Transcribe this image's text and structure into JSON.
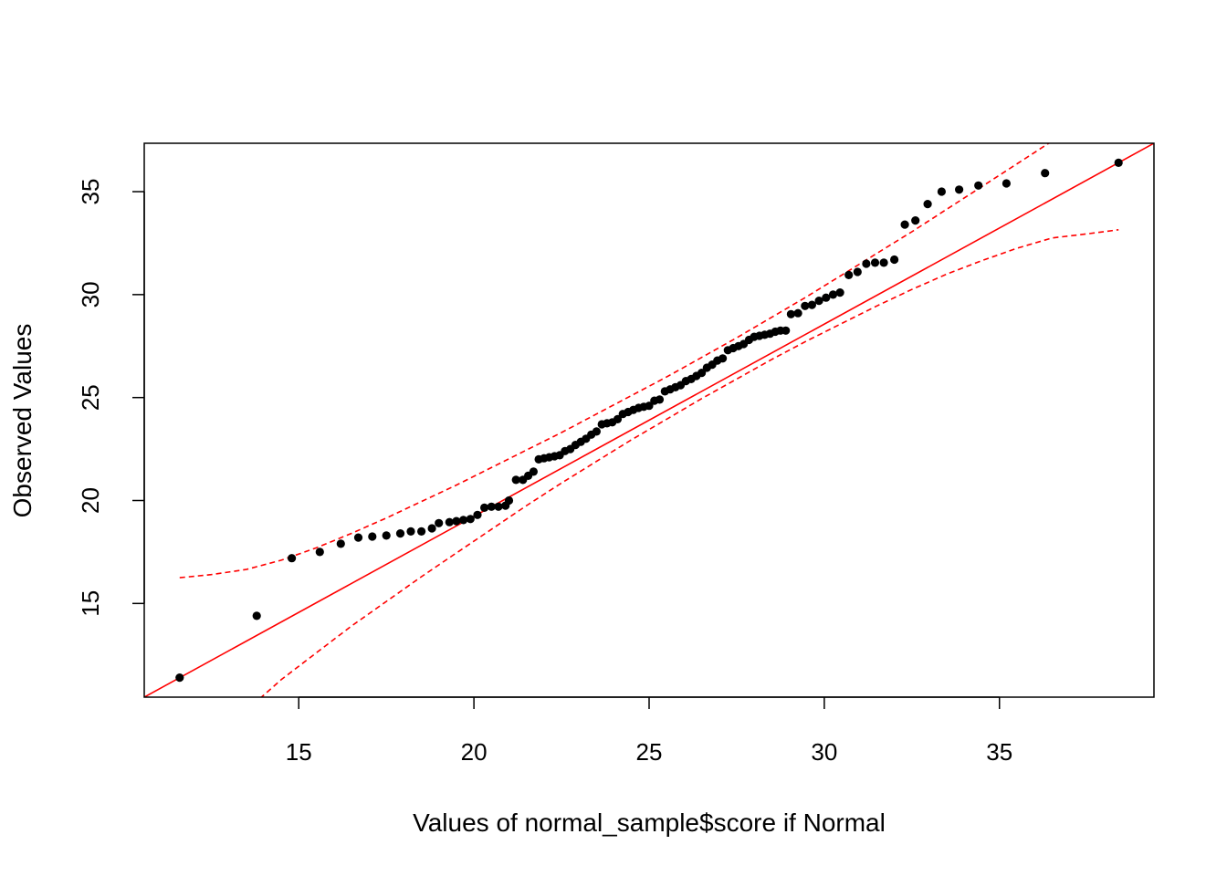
{
  "chart_data": {
    "type": "scatter",
    "title": "",
    "xlabel": "Values of normal_sample$score if Normal",
    "ylabel": "Observed Values",
    "xlim": [
      10.59,
      39.41
    ],
    "ylim": [
      10.45,
      37.35
    ],
    "x_ticks": [
      15,
      20,
      25,
      30,
      35
    ],
    "y_ticks": [
      15,
      20,
      25,
      30,
      35
    ],
    "x_tick_labels": [
      "15",
      "20",
      "25",
      "30",
      "35"
    ],
    "y_tick_labels": [
      "15",
      "20",
      "25",
      "30",
      "35"
    ],
    "grid": false,
    "legend": "none",
    "colors": {
      "points": "#000000",
      "reference_line": "#ff0000",
      "confidence_band": "#ff0000",
      "axes": "#000000"
    },
    "series": [
      {
        "kind": "points",
        "points": [
          [
            11.6,
            11.4
          ],
          [
            13.8,
            14.4
          ],
          [
            14.8,
            17.2
          ],
          [
            15.6,
            17.5
          ],
          [
            16.2,
            17.9
          ],
          [
            16.7,
            18.2
          ],
          [
            17.1,
            18.25
          ],
          [
            17.5,
            18.3
          ],
          [
            17.9,
            18.4
          ],
          [
            18.2,
            18.5
          ],
          [
            18.5,
            18.5
          ],
          [
            18.8,
            18.65
          ],
          [
            19.0,
            18.9
          ],
          [
            19.3,
            18.95
          ],
          [
            19.5,
            19.0
          ],
          [
            19.7,
            19.05
          ],
          [
            19.9,
            19.1
          ],
          [
            20.1,
            19.3
          ],
          [
            20.3,
            19.65
          ],
          [
            20.5,
            19.7
          ],
          [
            20.7,
            19.7
          ],
          [
            20.9,
            19.75
          ],
          [
            21.0,
            20.0
          ],
          [
            21.2,
            21.0
          ],
          [
            21.4,
            21.0
          ],
          [
            21.55,
            21.2
          ],
          [
            21.7,
            21.4
          ],
          [
            21.85,
            22.0
          ],
          [
            22.0,
            22.05
          ],
          [
            22.15,
            22.1
          ],
          [
            22.3,
            22.15
          ],
          [
            22.45,
            22.2
          ],
          [
            22.6,
            22.4
          ],
          [
            22.75,
            22.5
          ],
          [
            22.9,
            22.7
          ],
          [
            23.05,
            22.85
          ],
          [
            23.2,
            23.0
          ],
          [
            23.35,
            23.2
          ],
          [
            23.5,
            23.35
          ],
          [
            23.65,
            23.7
          ],
          [
            23.8,
            23.75
          ],
          [
            23.95,
            23.8
          ],
          [
            24.1,
            23.95
          ],
          [
            24.25,
            24.2
          ],
          [
            24.4,
            24.3
          ],
          [
            24.55,
            24.4
          ],
          [
            24.7,
            24.5
          ],
          [
            24.85,
            24.55
          ],
          [
            25.0,
            24.6
          ],
          [
            25.15,
            24.85
          ],
          [
            25.3,
            24.9
          ],
          [
            25.45,
            25.3
          ],
          [
            25.6,
            25.4
          ],
          [
            25.75,
            25.5
          ],
          [
            25.9,
            25.6
          ],
          [
            26.05,
            25.8
          ],
          [
            26.2,
            25.9
          ],
          [
            26.35,
            26.05
          ],
          [
            26.5,
            26.2
          ],
          [
            26.65,
            26.45
          ],
          [
            26.8,
            26.6
          ],
          [
            26.95,
            26.8
          ],
          [
            27.1,
            26.9
          ],
          [
            27.25,
            27.3
          ],
          [
            27.4,
            27.4
          ],
          [
            27.55,
            27.5
          ],
          [
            27.7,
            27.6
          ],
          [
            27.85,
            27.8
          ],
          [
            28.0,
            27.95
          ],
          [
            28.15,
            28.0
          ],
          [
            28.3,
            28.05
          ],
          [
            28.45,
            28.1
          ],
          [
            28.6,
            28.2
          ],
          [
            28.75,
            28.25
          ],
          [
            28.9,
            28.25
          ],
          [
            29.05,
            29.05
          ],
          [
            29.25,
            29.1
          ],
          [
            29.45,
            29.45
          ],
          [
            29.65,
            29.5
          ],
          [
            29.85,
            29.7
          ],
          [
            30.05,
            29.85
          ],
          [
            30.25,
            30.0
          ],
          [
            30.45,
            30.1
          ],
          [
            30.7,
            30.95
          ],
          [
            30.95,
            31.1
          ],
          [
            31.2,
            31.5
          ],
          [
            31.45,
            31.55
          ],
          [
            31.7,
            31.55
          ],
          [
            32.0,
            31.7
          ],
          [
            32.3,
            33.4
          ],
          [
            32.6,
            33.6
          ],
          [
            32.95,
            34.4
          ],
          [
            33.35,
            35.0
          ],
          [
            33.85,
            35.1
          ],
          [
            34.4,
            35.3
          ],
          [
            35.2,
            35.4
          ],
          [
            36.3,
            35.9
          ],
          [
            38.4,
            36.4
          ]
        ]
      },
      {
        "kind": "reference_line",
        "points": [
          [
            10.59,
            10.45
          ],
          [
            39.41,
            37.35
          ]
        ]
      },
      {
        "kind": "upper_band",
        "points": [
          [
            11.6,
            16.25
          ],
          [
            12.5,
            16.4
          ],
          [
            13.5,
            16.65
          ],
          [
            14.5,
            17.1
          ],
          [
            15.5,
            17.7
          ],
          [
            16.5,
            18.4
          ],
          [
            17.5,
            19.15
          ],
          [
            18.5,
            19.95
          ],
          [
            19.5,
            20.75
          ],
          [
            20.5,
            21.6
          ],
          [
            21.5,
            22.45
          ],
          [
            22.5,
            23.3
          ],
          [
            23.5,
            24.2
          ],
          [
            24.5,
            25.1
          ],
          [
            25.5,
            26.0
          ],
          [
            26.5,
            26.95
          ],
          [
            27.5,
            27.9
          ],
          [
            28.5,
            28.9
          ],
          [
            29.5,
            29.9
          ],
          [
            30.5,
            30.95
          ],
          [
            31.5,
            32.0
          ],
          [
            32.5,
            33.05
          ],
          [
            33.5,
            34.15
          ],
          [
            34.5,
            35.25
          ],
          [
            35.5,
            36.35
          ],
          [
            36.5,
            37.45
          ]
        ]
      },
      {
        "kind": "lower_band",
        "points": [
          [
            13.5,
            9.8
          ],
          [
            14.5,
            11.3
          ],
          [
            15.5,
            12.6
          ],
          [
            16.5,
            13.9
          ],
          [
            17.5,
            15.1
          ],
          [
            18.5,
            16.3
          ],
          [
            19.5,
            17.45
          ],
          [
            20.5,
            18.6
          ],
          [
            21.5,
            19.75
          ],
          [
            22.5,
            20.85
          ],
          [
            23.5,
            21.9
          ],
          [
            24.5,
            22.95
          ],
          [
            25.5,
            23.95
          ],
          [
            26.5,
            24.95
          ],
          [
            27.5,
            25.9
          ],
          [
            28.5,
            26.85
          ],
          [
            29.5,
            27.75
          ],
          [
            30.5,
            28.6
          ],
          [
            31.5,
            29.45
          ],
          [
            32.5,
            30.25
          ],
          [
            33.5,
            31.0
          ],
          [
            34.5,
            31.65
          ],
          [
            35.5,
            32.25
          ],
          [
            36.5,
            32.75
          ],
          [
            37.5,
            32.95
          ],
          [
            38.4,
            33.15
          ]
        ]
      }
    ]
  }
}
